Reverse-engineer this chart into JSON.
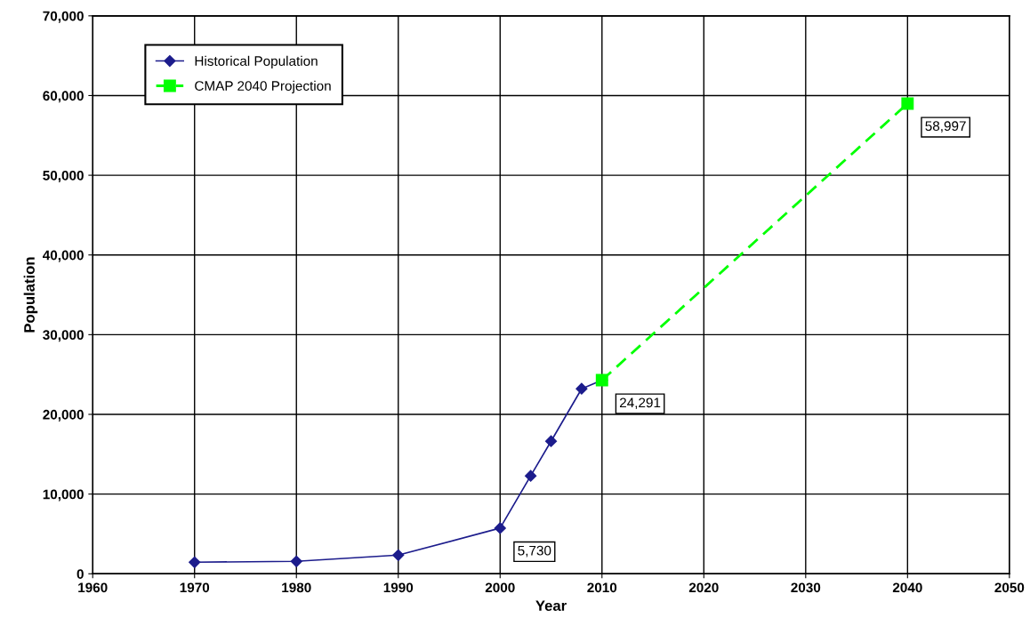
{
  "chart_data": {
    "type": "line",
    "xlabel": "Year",
    "ylabel": "Population",
    "xlim": [
      1960,
      2050
    ],
    "xticks": [
      1960,
      1970,
      1980,
      1990,
      2000,
      2010,
      2020,
      2030,
      2040,
      2050
    ],
    "ylim": [
      0,
      70000
    ],
    "yticks": [
      {
        "value": 0,
        "label": "0"
      },
      {
        "value": 10000,
        "label": "10,000"
      },
      {
        "value": 20000,
        "label": "20,000"
      },
      {
        "value": 30000,
        "label": "30,000"
      },
      {
        "value": 40000,
        "label": "40,000"
      },
      {
        "value": 50000,
        "label": "50,000"
      },
      {
        "value": 60000,
        "label": "60,000"
      },
      {
        "value": 70000,
        "label": "70,000"
      }
    ],
    "grid": true,
    "legend": "top left",
    "series": [
      {
        "name": "Historical Population",
        "color": "#1c1c8c",
        "marker": "diamond",
        "line_style": "solid",
        "x": [
          1970,
          1980,
          1990,
          2000,
          2003,
          2005,
          2008,
          2010
        ],
        "values": [
          1450,
          1560,
          2340,
          5730,
          12280,
          16630,
          23210,
          24291
        ]
      },
      {
        "name": "CMAP 2040 Projection",
        "color": "#00ff00",
        "marker": "square",
        "line_style": "dashed",
        "x": [
          2010,
          2040
        ],
        "values": [
          24291,
          58997
        ]
      }
    ],
    "annotations": [
      {
        "text": "5,730",
        "x": 2000,
        "y": 5730
      },
      {
        "text": "24,291",
        "x": 2010,
        "y": 24291
      },
      {
        "text": "58,997",
        "x": 2040,
        "y": 58997
      }
    ]
  }
}
